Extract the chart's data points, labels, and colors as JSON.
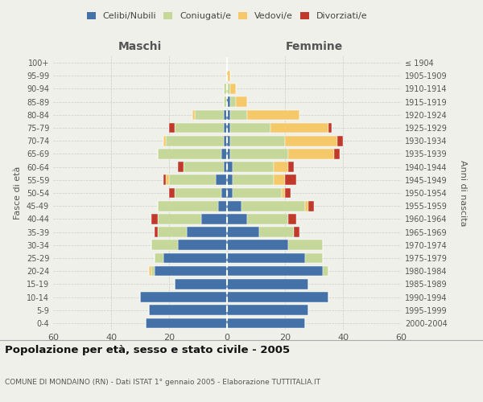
{
  "age_groups": [
    "0-4",
    "5-9",
    "10-14",
    "15-19",
    "20-24",
    "25-29",
    "30-34",
    "35-39",
    "40-44",
    "45-49",
    "50-54",
    "55-59",
    "60-64",
    "65-69",
    "70-74",
    "75-79",
    "80-84",
    "85-89",
    "90-94",
    "95-99",
    "100+"
  ],
  "birth_years": [
    "2000-2004",
    "1995-1999",
    "1990-1994",
    "1985-1989",
    "1980-1984",
    "1975-1979",
    "1970-1974",
    "1965-1969",
    "1960-1964",
    "1955-1959",
    "1950-1954",
    "1945-1949",
    "1940-1944",
    "1935-1939",
    "1930-1934",
    "1925-1929",
    "1920-1924",
    "1915-1919",
    "1910-1914",
    "1905-1909",
    "≤ 1904"
  ],
  "maschi": {
    "celibi": [
      28,
      27,
      30,
      18,
      25,
      22,
      17,
      14,
      9,
      3,
      2,
      4,
      1,
      2,
      1,
      1,
      1,
      0,
      0,
      0,
      0
    ],
    "coniugati": [
      0,
      0,
      0,
      0,
      1,
      3,
      9,
      10,
      15,
      21,
      16,
      16,
      14,
      22,
      20,
      17,
      10,
      1,
      1,
      0,
      0
    ],
    "vedovi": [
      0,
      0,
      0,
      0,
      1,
      0,
      0,
      0,
      0,
      0,
      0,
      1,
      0,
      0,
      1,
      0,
      1,
      0,
      0,
      0,
      0
    ],
    "divorziati": [
      0,
      0,
      0,
      0,
      0,
      0,
      0,
      1,
      2,
      0,
      2,
      1,
      2,
      0,
      0,
      2,
      0,
      0,
      0,
      0,
      0
    ]
  },
  "femmine": {
    "nubili": [
      27,
      28,
      35,
      28,
      33,
      27,
      21,
      11,
      7,
      5,
      2,
      2,
      2,
      1,
      1,
      1,
      1,
      1,
      0,
      0,
      0
    ],
    "coniugate": [
      0,
      0,
      0,
      0,
      2,
      6,
      12,
      12,
      14,
      22,
      17,
      14,
      14,
      20,
      19,
      14,
      6,
      2,
      1,
      0,
      0
    ],
    "vedove": [
      0,
      0,
      0,
      0,
      0,
      0,
      0,
      0,
      0,
      1,
      1,
      4,
      5,
      16,
      18,
      20,
      18,
      4,
      2,
      1,
      0
    ],
    "divorziate": [
      0,
      0,
      0,
      0,
      0,
      0,
      0,
      2,
      3,
      2,
      2,
      4,
      2,
      2,
      2,
      1,
      0,
      0,
      0,
      0,
      0
    ]
  },
  "colors": {
    "celibi": "#4472a8",
    "coniugati": "#c5d89a",
    "vedovi": "#f5c96a",
    "divorziati": "#c0392b"
  },
  "title": "Popolazione per età, sesso e stato civile - 2005",
  "subtitle": "COMUNE DI MONDAINO (RN) - Dati ISTAT 1° gennaio 2005 - Elaborazione TUTTITALIA.IT",
  "xlabel_left": "Maschi",
  "xlabel_right": "Femmine",
  "ylabel_left": "Fasce di età",
  "ylabel_right": "Anni di nascita",
  "xlim": 60,
  "background_color": "#f0f0eb"
}
